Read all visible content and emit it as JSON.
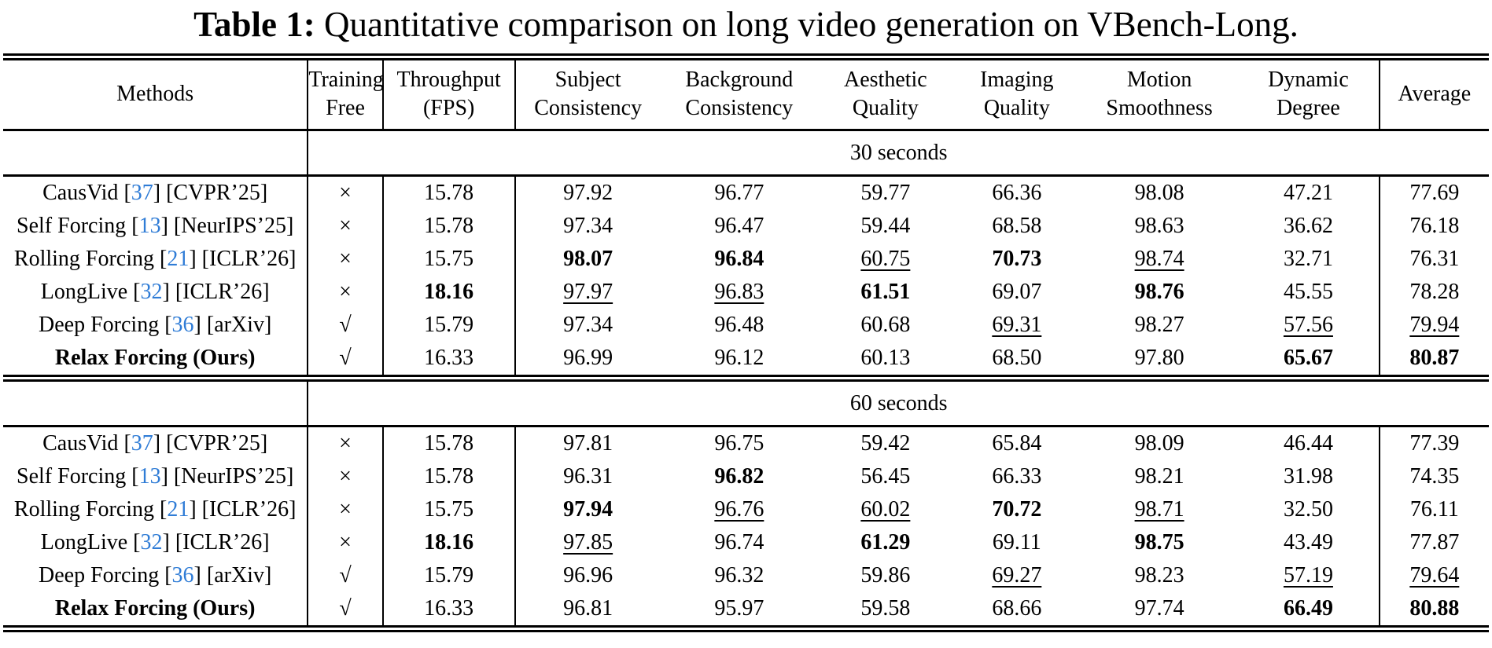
{
  "caption": {
    "label": "Table 1:",
    "text": " Quantitative comparison on long video generation on VBench-Long."
  },
  "colors": {
    "citation_blue": "#2F7CD6",
    "text": "#000000",
    "background": "#FFFFFF"
  },
  "glyphs": {
    "training_free_no": "×",
    "training_free_yes": "√"
  },
  "table": {
    "columns": [
      {
        "id": "methods",
        "lines": [
          "Methods"
        ]
      },
      {
        "id": "training-free",
        "lines": [
          "Training",
          "Free"
        ]
      },
      {
        "id": "throughput",
        "lines": [
          "Throughput",
          "(FPS)"
        ]
      },
      {
        "id": "subject-consistency",
        "lines": [
          "Subject",
          "Consistency"
        ]
      },
      {
        "id": "background-consistency",
        "lines": [
          "Background",
          "Consistency"
        ]
      },
      {
        "id": "aesthetic-quality",
        "lines": [
          "Aesthetic",
          "Quality"
        ]
      },
      {
        "id": "imaging-quality",
        "lines": [
          "Imaging",
          "Quality"
        ]
      },
      {
        "id": "motion-smoothness",
        "lines": [
          "Motion",
          "Smoothness"
        ]
      },
      {
        "id": "dynamic-degree",
        "lines": [
          "Dynamic",
          "Degree"
        ]
      },
      {
        "id": "average",
        "lines": [
          "Average"
        ]
      }
    ],
    "sections": [
      {
        "label": "30 seconds",
        "rows": [
          {
            "method": {
              "name": "CausVid",
              "ref": "37",
              "venue": "[CVPR’25]",
              "bold": false
            },
            "training_free": "×",
            "cells": [
              {
                "v": "15.78"
              },
              {
                "v": "97.92"
              },
              {
                "v": "96.77"
              },
              {
                "v": "59.77"
              },
              {
                "v": "66.36"
              },
              {
                "v": "98.08"
              },
              {
                "v": "47.21"
              },
              {
                "v": "77.69"
              }
            ]
          },
          {
            "method": {
              "name": "Self Forcing",
              "ref": "13",
              "venue": "[NeurIPS’25]",
              "bold": false
            },
            "training_free": "×",
            "cells": [
              {
                "v": "15.78"
              },
              {
                "v": "97.34"
              },
              {
                "v": "96.47"
              },
              {
                "v": "59.44"
              },
              {
                "v": "68.58"
              },
              {
                "v": "98.63"
              },
              {
                "v": "36.62"
              },
              {
                "v": "76.18"
              }
            ]
          },
          {
            "method": {
              "name": "Rolling Forcing",
              "ref": "21",
              "venue": "[ICLR’26]",
              "bold": false
            },
            "training_free": "×",
            "cells": [
              {
                "v": "15.75"
              },
              {
                "v": "98.07",
                "s": "b"
              },
              {
                "v": "96.84",
                "s": "b"
              },
              {
                "v": "60.75",
                "s": "u"
              },
              {
                "v": "70.73",
                "s": "b"
              },
              {
                "v": "98.74",
                "s": "u"
              },
              {
                "v": "32.71"
              },
              {
                "v": "76.31"
              }
            ]
          },
          {
            "method": {
              "name": "LongLive",
              "ref": "32",
              "venue": "[ICLR’26]",
              "bold": false
            },
            "training_free": "×",
            "cells": [
              {
                "v": "18.16",
                "s": "b"
              },
              {
                "v": "97.97",
                "s": "u"
              },
              {
                "v": "96.83",
                "s": "u"
              },
              {
                "v": "61.51",
                "s": "b"
              },
              {
                "v": "69.07"
              },
              {
                "v": "98.76",
                "s": "b"
              },
              {
                "v": "45.55"
              },
              {
                "v": "78.28"
              }
            ]
          },
          {
            "method": {
              "name": "Deep Forcing",
              "ref": "36",
              "venue": "[arXiv]",
              "bold": false
            },
            "training_free": "√",
            "cells": [
              {
                "v": "15.79"
              },
              {
                "v": "97.34"
              },
              {
                "v": "96.48"
              },
              {
                "v": "60.68"
              },
              {
                "v": "69.31",
                "s": "u"
              },
              {
                "v": "98.27"
              },
              {
                "v": "57.56",
                "s": "u"
              },
              {
                "v": "79.94",
                "s": "u"
              }
            ]
          },
          {
            "method": {
              "name": "Relax Forcing (Ours)",
              "ref": null,
              "venue": null,
              "bold": true
            },
            "training_free": "√",
            "cells": [
              {
                "v": "16.33"
              },
              {
                "v": "96.99"
              },
              {
                "v": "96.12"
              },
              {
                "v": "60.13"
              },
              {
                "v": "68.50"
              },
              {
                "v": "97.80"
              },
              {
                "v": "65.67",
                "s": "b"
              },
              {
                "v": "80.87",
                "s": "b"
              }
            ]
          }
        ]
      },
      {
        "label": "60 seconds",
        "rows": [
          {
            "method": {
              "name": "CausVid",
              "ref": "37",
              "venue": "[CVPR’25]",
              "bold": false
            },
            "training_free": "×",
            "cells": [
              {
                "v": "15.78"
              },
              {
                "v": "97.81"
              },
              {
                "v": "96.75"
              },
              {
                "v": "59.42"
              },
              {
                "v": "65.84"
              },
              {
                "v": "98.09"
              },
              {
                "v": "46.44"
              },
              {
                "v": "77.39"
              }
            ]
          },
          {
            "method": {
              "name": "Self Forcing",
              "ref": "13",
              "venue": "[NeurIPS’25]",
              "bold": false
            },
            "training_free": "×",
            "cells": [
              {
                "v": "15.78"
              },
              {
                "v": "96.31"
              },
              {
                "v": "96.82",
                "s": "b"
              },
              {
                "v": "56.45"
              },
              {
                "v": "66.33"
              },
              {
                "v": "98.21"
              },
              {
                "v": "31.98"
              },
              {
                "v": "74.35"
              }
            ]
          },
          {
            "method": {
              "name": "Rolling Forcing",
              "ref": "21",
              "venue": "[ICLR’26]",
              "bold": false
            },
            "training_free": "×",
            "cells": [
              {
                "v": "15.75"
              },
              {
                "v": "97.94",
                "s": "b"
              },
              {
                "v": "96.76",
                "s": "u"
              },
              {
                "v": "60.02",
                "s": "u"
              },
              {
                "v": "70.72",
                "s": "b"
              },
              {
                "v": "98.71",
                "s": "u"
              },
              {
                "v": "32.50"
              },
              {
                "v": "76.11"
              }
            ]
          },
          {
            "method": {
              "name": "LongLive",
              "ref": "32",
              "venue": "[ICLR’26]",
              "bold": false
            },
            "training_free": "×",
            "cells": [
              {
                "v": "18.16",
                "s": "b"
              },
              {
                "v": "97.85",
                "s": "u"
              },
              {
                "v": "96.74"
              },
              {
                "v": "61.29",
                "s": "b"
              },
              {
                "v": "69.11"
              },
              {
                "v": "98.75",
                "s": "b"
              },
              {
                "v": "43.49"
              },
              {
                "v": "77.87"
              }
            ]
          },
          {
            "method": {
              "name": "Deep Forcing",
              "ref": "36",
              "venue": "[arXiv]",
              "bold": false
            },
            "training_free": "√",
            "cells": [
              {
                "v": "15.79"
              },
              {
                "v": "96.96"
              },
              {
                "v": "96.32"
              },
              {
                "v": "59.86"
              },
              {
                "v": "69.27",
                "s": "u"
              },
              {
                "v": "98.23"
              },
              {
                "v": "57.19",
                "s": "u"
              },
              {
                "v": "79.64",
                "s": "u"
              }
            ]
          },
          {
            "method": {
              "name": "Relax Forcing (Ours)",
              "ref": null,
              "venue": null,
              "bold": true
            },
            "training_free": "√",
            "cells": [
              {
                "v": "16.33"
              },
              {
                "v": "96.81"
              },
              {
                "v": "95.97"
              },
              {
                "v": "59.58"
              },
              {
                "v": "68.66"
              },
              {
                "v": "97.74"
              },
              {
                "v": "66.49",
                "s": "b"
              },
              {
                "v": "80.88",
                "s": "b"
              }
            ]
          }
        ]
      }
    ]
  }
}
